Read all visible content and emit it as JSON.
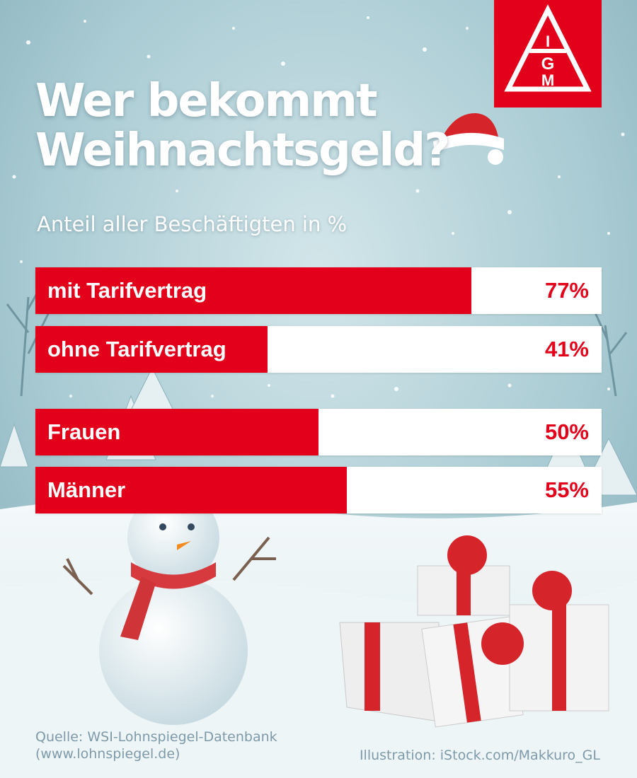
{
  "header": {
    "title_line1": "Wer bekommt",
    "title_line2": "Weihnachtsgeld?",
    "subtitle": "Anteil aller Beschäftigten in %"
  },
  "logo": {
    "icon": "igm-logo-icon",
    "letters": [
      "I",
      "G",
      "M"
    ]
  },
  "colors": {
    "brand_red": "#e2001a",
    "bar_background": "#ffffff"
  },
  "chart_data": {
    "type": "bar",
    "orientation": "horizontal",
    "title": "Wer bekommt Weihnachtsgeld?",
    "subtitle": "Anteil aller Beschäftigten in %",
    "categories": [
      "mit Tarifvertrag",
      "ohne Tarifvertrag",
      "Frauen",
      "Männer"
    ],
    "values": [
      77,
      41,
      50,
      55
    ],
    "value_labels": [
      "77%",
      "41%",
      "50%",
      "55%"
    ],
    "xlim": [
      0,
      100
    ],
    "grid": false,
    "legend": "none"
  },
  "footer": {
    "source_line1": "Quelle: WSI-Lohnspiegel-Datenbank",
    "source_line2": "(www.lohnspiegel.de)",
    "credit": "Illustration: iStock.com/Makkuro_GL"
  },
  "illustration": {
    "items": [
      "santa-hat-icon",
      "snowman-icon",
      "gift-boxes-icon",
      "winter-trees-icon"
    ]
  }
}
